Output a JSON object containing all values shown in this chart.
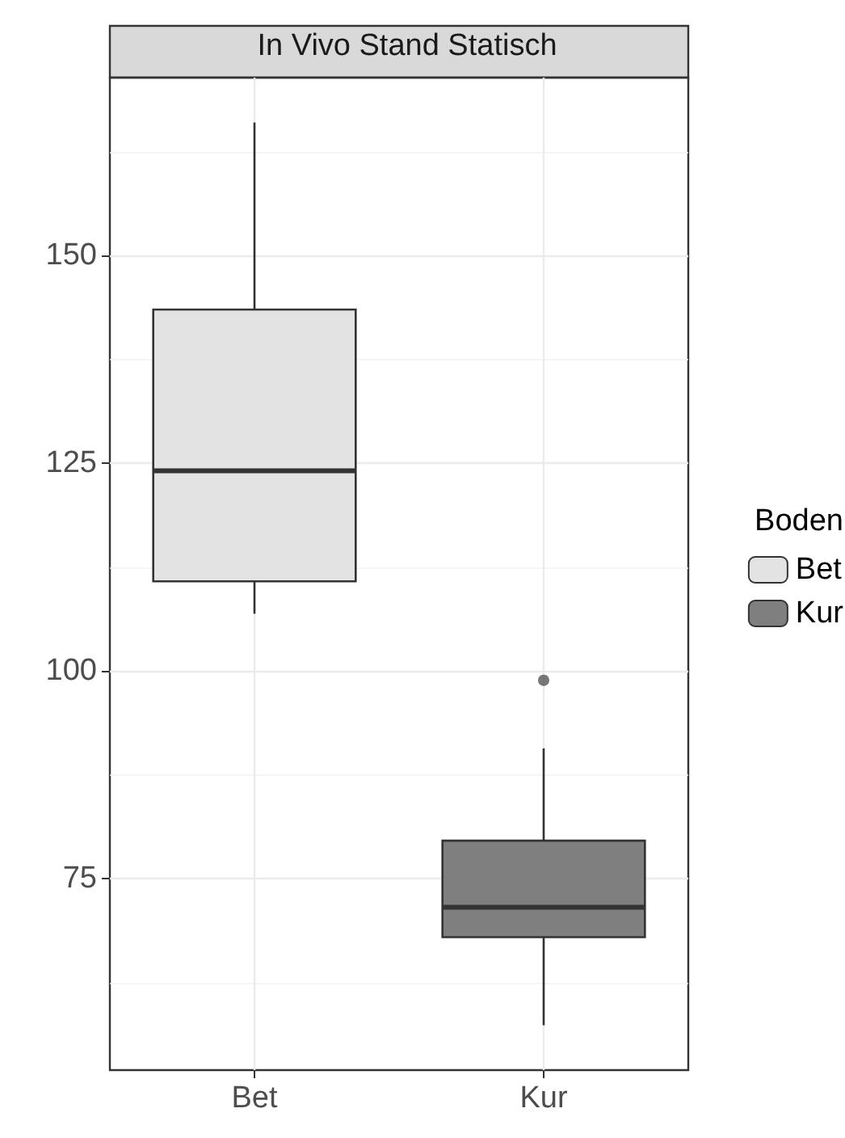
{
  "chart_data": {
    "type": "box",
    "title": "In Vivo Stand Statisch",
    "legend_title": "Boden",
    "categories": [
      "Bet",
      "Kur"
    ],
    "series": [
      {
        "name": "Bet",
        "color": "#e3e3e3",
        "boxes": [
          {
            "low": 106.9,
            "q1": 110.8,
            "median": 124.1,
            "q3": 143.5,
            "high": 166.0
          },
          null
        ]
      },
      {
        "name": "Kur",
        "color": "#7f7f7f",
        "boxes": [
          null,
          {
            "low": 57.4,
            "q1": 68.0,
            "median": 71.6,
            "q3": 79.6,
            "high": 90.7,
            "outliers": [
              98.9
            ]
          }
        ]
      }
    ],
    "ylim": [
      52.0,
      171.4
    ],
    "yticks": [
      75,
      100,
      125,
      150
    ],
    "grid": true,
    "legend": "right"
  }
}
